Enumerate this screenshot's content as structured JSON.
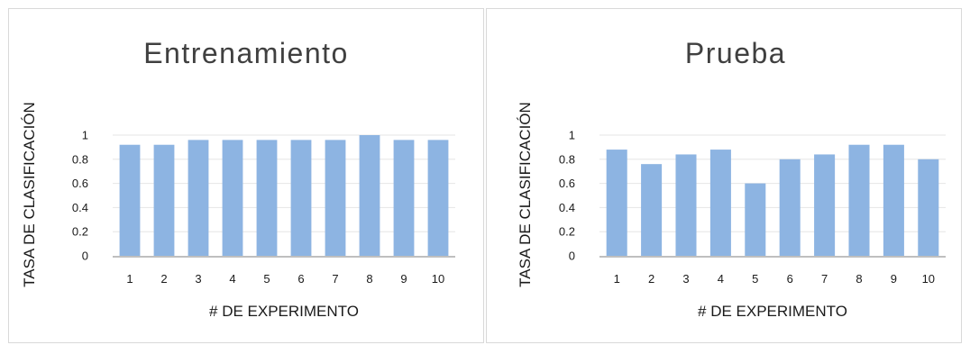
{
  "chart_data": [
    {
      "type": "bar",
      "title": "Entrenamiento",
      "xlabel": "# DE EXPERIMENTO",
      "ylabel": "TASA DE CLASIFICACIÓN",
      "categories": [
        "1",
        "2",
        "3",
        "4",
        "5",
        "6",
        "7",
        "8",
        "9",
        "10"
      ],
      "values": [
        0.92,
        0.92,
        0.96,
        0.96,
        0.96,
        0.96,
        0.96,
        1.0,
        0.96,
        0.96
      ],
      "ylim": [
        0,
        1
      ],
      "yticks": [
        "0",
        "0.2",
        "0.4",
        "0.6",
        "0.8",
        "1"
      ],
      "bar_color": "#8db4e2",
      "grid": true
    },
    {
      "type": "bar",
      "title": "Prueba",
      "xlabel": "# DE EXPERIMENTO",
      "ylabel": "TASA DE CLASIFICACIÓN",
      "categories": [
        "1",
        "2",
        "3",
        "4",
        "5",
        "6",
        "7",
        "8",
        "9",
        "10"
      ],
      "values": [
        0.88,
        0.76,
        0.84,
        0.88,
        0.6,
        0.8,
        0.84,
        0.92,
        0.92,
        0.8
      ],
      "ylim": [
        0,
        1
      ],
      "yticks": [
        "0",
        "0.2",
        "0.4",
        "0.6",
        "0.8",
        "1"
      ],
      "bar_color": "#8db4e2",
      "grid": true
    }
  ]
}
